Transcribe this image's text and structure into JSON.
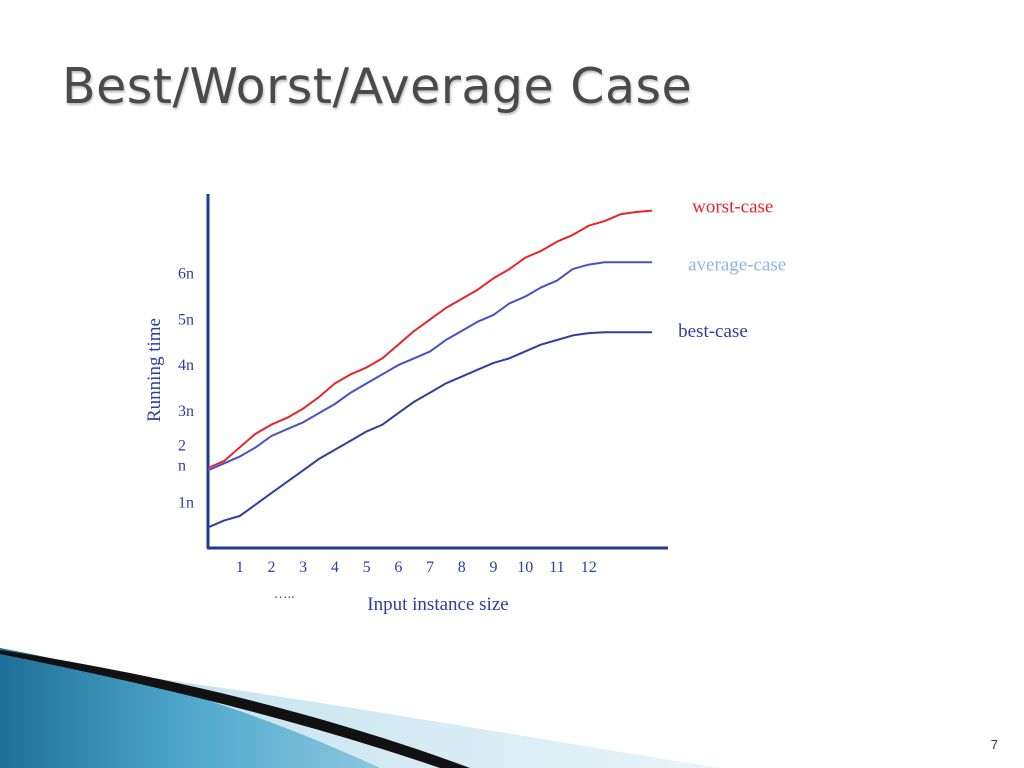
{
  "slide": {
    "title": "Best/Worst/Average Case",
    "number": "7"
  },
  "colors": {
    "axis": "#1f3a93",
    "label_text": "#2b3f9e",
    "worst": "#e8262a",
    "average": "#4a50c8",
    "average_label": "#8fb4e8",
    "best": "#2f3f9a"
  },
  "chart_data": {
    "type": "line",
    "xlabel": "Input instance size",
    "ylabel": "Running time",
    "x_ticks": [
      "1",
      "2",
      "3",
      "4",
      "5",
      "6",
      "7",
      "8",
      "9",
      "10",
      "11",
      "12"
    ],
    "x_extra_label": "…..",
    "y_ticks": [
      "1n",
      "2\nn",
      "3n",
      "4n",
      "5n",
      "6n"
    ],
    "xlim": [
      0,
      14.5
    ],
    "ylim": [
      0,
      7.7
    ],
    "grid": false,
    "legend": "right (labels at line ends)",
    "series": [
      {
        "name": "worst-case",
        "x": [
          0,
          0.5,
          1,
          1.5,
          2,
          2.5,
          3,
          3.5,
          4,
          4.5,
          5,
          5.5,
          6,
          6.5,
          7,
          7.5,
          8,
          8.5,
          9,
          9.5,
          10,
          10.5,
          11,
          11.5,
          12,
          12.5,
          13,
          13.5,
          14
        ],
        "y": [
          1.75,
          1.9,
          2.2,
          2.5,
          2.7,
          2.85,
          3.05,
          3.3,
          3.6,
          3.8,
          3.95,
          4.15,
          4.45,
          4.75,
          5.0,
          5.25,
          5.45,
          5.65,
          5.9,
          6.1,
          6.35,
          6.5,
          6.7,
          6.85,
          7.05,
          7.15,
          7.3,
          7.35,
          7.38
        ]
      },
      {
        "name": "average-case",
        "x": [
          0,
          0.5,
          1,
          1.5,
          2,
          2.5,
          3,
          3.5,
          4,
          4.5,
          5,
          5.5,
          6,
          6.5,
          7,
          7.5,
          8,
          8.5,
          9,
          9.5,
          10,
          10.5,
          11,
          11.5,
          12,
          12.5,
          13,
          13.5,
          14
        ],
        "y": [
          1.7,
          1.85,
          2.0,
          2.2,
          2.45,
          2.6,
          2.75,
          2.95,
          3.15,
          3.4,
          3.6,
          3.8,
          4.0,
          4.15,
          4.3,
          4.55,
          4.75,
          4.95,
          5.1,
          5.35,
          5.5,
          5.7,
          5.85,
          6.1,
          6.2,
          6.25,
          6.25,
          6.25,
          6.25
        ]
      },
      {
        "name": "best-case",
        "x": [
          0,
          0.5,
          1,
          1.5,
          2,
          2.5,
          3,
          3.5,
          4,
          4.5,
          5,
          5.5,
          6,
          6.5,
          7,
          7.5,
          8,
          8.5,
          9,
          9.5,
          10,
          10.5,
          11,
          11.5,
          12,
          12.5,
          13,
          13.5,
          14
        ],
        "y": [
          0.45,
          0.6,
          0.7,
          0.95,
          1.2,
          1.45,
          1.7,
          1.95,
          2.15,
          2.35,
          2.55,
          2.7,
          2.95,
          3.2,
          3.4,
          3.6,
          3.75,
          3.9,
          4.05,
          4.15,
          4.3,
          4.45,
          4.55,
          4.65,
          4.7,
          4.72,
          4.72,
          4.72,
          4.72
        ]
      }
    ]
  }
}
